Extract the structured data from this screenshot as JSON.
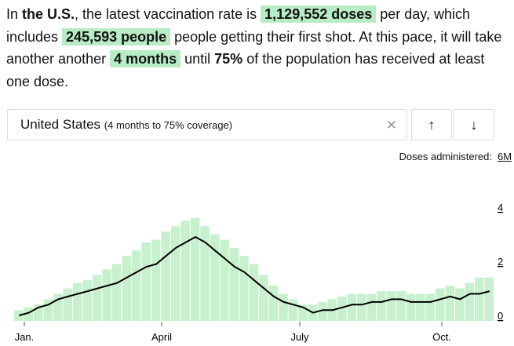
{
  "summary": {
    "p1": "In ",
    "location": "the U.S.",
    "p2": ", the latest vaccination rate is ",
    "doses": "1,129,552 doses",
    "p3": " per day, which includes ",
    "people": "245,593 people",
    "p4": " people getting their first shot. At this pace, it will take another another ",
    "duration": "4 months",
    "p5": " until ",
    "target": "75%",
    "p6": " of the population has received at least one dose."
  },
  "selector": {
    "name": "United States",
    "detail": "(4 months to 75% coverage)",
    "clear_icon": "close-icon",
    "up_icon": "arrow-up-icon",
    "down_icon": "arrow-down-icon"
  },
  "unit_label": "Doses administered:",
  "unit_max": "6M",
  "colors": {
    "highlight": "#b8ecc4",
    "bars": "#c7f0cc",
    "line": "#000000"
  },
  "chart_data": {
    "type": "bar",
    "title": "",
    "xlabel": "",
    "ylabel": "Doses administered",
    "ylim": [
      0,
      6
    ],
    "yticks": [
      "0",
      "2",
      "4"
    ],
    "xticks": [
      "Jan.",
      "April",
      "July",
      "Oct."
    ],
    "series": [
      {
        "type": "bar",
        "values": [
          0.4,
          0.5,
          0.6,
          0.8,
          1.0,
          1.2,
          1.4,
          1.5,
          1.7,
          1.9,
          2.1,
          2.4,
          2.6,
          2.9,
          3.0,
          3.3,
          3.5,
          3.7,
          3.8,
          3.5,
          3.2,
          3.0,
          2.7,
          2.4,
          2.1,
          1.7,
          1.3,
          1.0,
          0.8,
          0.6,
          0.6,
          0.7,
          0.8,
          0.9,
          1.0,
          1.0,
          1.0,
          1.1,
          1.1,
          1.1,
          1.0,
          1.0,
          1.0,
          1.2,
          1.3,
          1.2,
          1.4,
          1.6,
          1.6
        ]
      },
      {
        "type": "line",
        "values": [
          0.2,
          0.3,
          0.5,
          0.6,
          0.8,
          0.9,
          1.0,
          1.1,
          1.2,
          1.3,
          1.4,
          1.6,
          1.8,
          2.0,
          2.1,
          2.4,
          2.7,
          2.9,
          3.1,
          2.9,
          2.6,
          2.3,
          2.0,
          1.8,
          1.5,
          1.2,
          0.9,
          0.7,
          0.6,
          0.5,
          0.3,
          0.4,
          0.4,
          0.5,
          0.6,
          0.6,
          0.7,
          0.7,
          0.8,
          0.8,
          0.7,
          0.7,
          0.7,
          0.8,
          0.9,
          0.8,
          1.0,
          1.0,
          1.1
        ]
      }
    ]
  }
}
